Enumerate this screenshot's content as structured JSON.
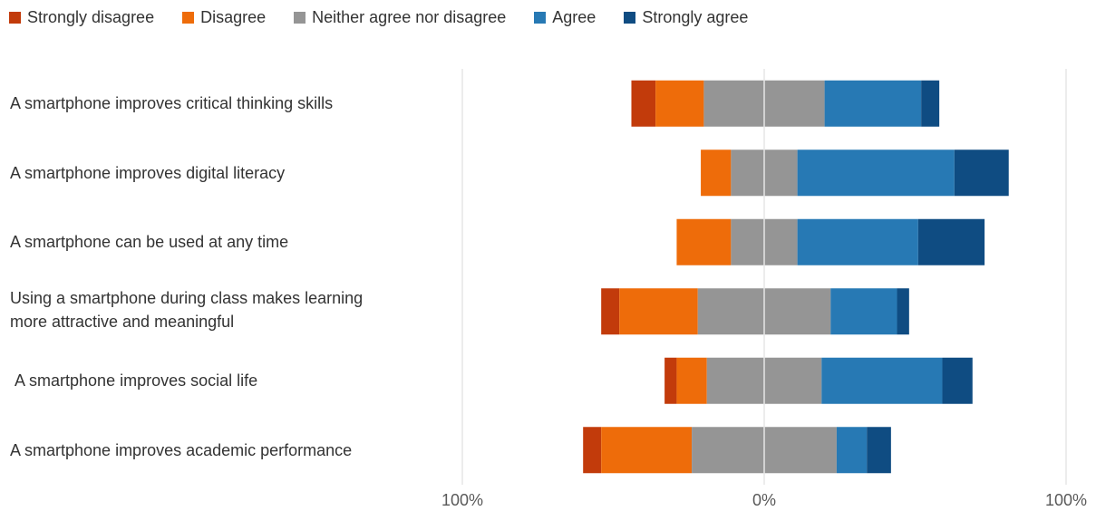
{
  "chart_data": {
    "type": "bar",
    "orientation": "horizontal",
    "stacked": "diverging",
    "title": "",
    "xlabel": "",
    "ylabel": "",
    "xlim": [
      -100,
      100
    ],
    "x_tick_labels": [
      "100%",
      "0%",
      "100%"
    ],
    "grid": true,
    "legend_position": "top-left",
    "categories": [
      "A smartphone improves critical thinking skills",
      "A smartphone improves digital literacy",
      "A smartphone can be used at any time",
      "Using a smartphone during class makes learning\nmore attractive and meaningful",
      " A smartphone improves social life",
      "A smartphone improves academic performance"
    ],
    "series": [
      {
        "name": "Strongly disagree",
        "color": "#C23B0B",
        "values": [
          8,
          0,
          0,
          6,
          4,
          6
        ]
      },
      {
        "name": "Disagree",
        "color": "#EE6C0A",
        "values": [
          16,
          10,
          18,
          26,
          10,
          30
        ]
      },
      {
        "name": "Neither agree nor disagree",
        "color": "#959595",
        "values": [
          40,
          22,
          22,
          44,
          38,
          48
        ]
      },
      {
        "name": "Agree",
        "color": "#2779B4",
        "values": [
          32,
          52,
          40,
          22,
          40,
          10
        ]
      },
      {
        "name": "Strongly agree",
        "color": "#0F4C82",
        "values": [
          6,
          18,
          22,
          4,
          10,
          8
        ]
      }
    ]
  }
}
